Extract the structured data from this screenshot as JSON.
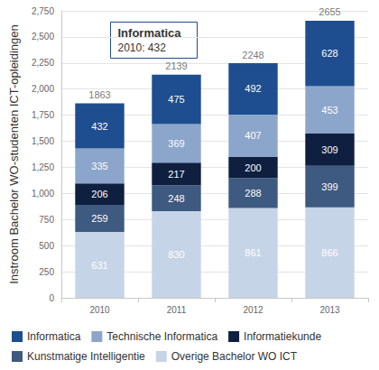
{
  "chart_data": {
    "type": "bar",
    "stacked": true,
    "data_labels": true,
    "grid": true,
    "legend": "bottom",
    "y_label": "Instroom Bachelor WO-studenten ICT-opleidingen",
    "categories": [
      "2010",
      "2011",
      "2012",
      "2013"
    ],
    "series": [
      {
        "name": "Overige Bachelor WO ICT",
        "color": "#c6d4e7",
        "values": [
          631,
          830,
          861,
          866
        ]
      },
      {
        "name": "Kunstmatige Intelligentie",
        "color": "#3e5a80",
        "values": [
          259,
          248,
          288,
          399
        ]
      },
      {
        "name": "Informatiekunde",
        "color": "#0e1f40",
        "values": [
          206,
          217,
          200,
          309
        ]
      },
      {
        "name": "Technische Informatica",
        "color": "#8ca6cb",
        "values": [
          335,
          369,
          407,
          453
        ]
      },
      {
        "name": "Informatica",
        "color": "#1e4e8f",
        "values": [
          432,
          475,
          492,
          628
        ]
      }
    ],
    "legend_order": [
      "Informatica",
      "Technische Informatica",
      "Informatiekunde",
      "Kunstmatige Intelligentie",
      "Overige Bachelor WO ICT"
    ],
    "totals": [
      1863,
      2139,
      2248,
      2655
    ],
    "ylim": [
      0,
      2750
    ],
    "yticks": [
      0,
      250,
      500,
      750,
      1000,
      1250,
      1500,
      1750,
      2000,
      2250,
      2500,
      2750
    ],
    "annotations": [
      {
        "title": "Informatica",
        "text": "2010: 432"
      }
    ]
  }
}
